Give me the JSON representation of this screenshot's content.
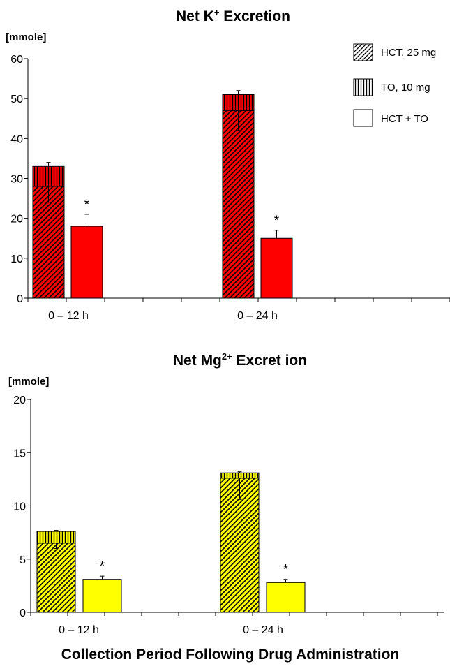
{
  "xlabel": "Collection Period Following Drug Administration",
  "legend": {
    "hct": "HCT, 25 mg",
    "to": "TO, 10 mg",
    "combo": "HCT + TO"
  },
  "charts": [
    {
      "title_main": "Net K",
      "title_sup": "+",
      "title_rest": " Excretion"
    },
    {
      "title_main": "Net Mg",
      "title_sup": "2+",
      "title_rest": " Excret ion"
    }
  ],
  "chart_data": [
    {
      "type": "bar",
      "title": "Net K+ Excretion",
      "ylabel": "[mmole]",
      "ylim": [
        0,
        60
      ],
      "yticks": [
        0,
        10,
        20,
        30,
        40,
        50,
        60
      ],
      "categories": [
        "0 – 12 h",
        "0 – 24 h"
      ],
      "color": "#ff0000",
      "series": [
        {
          "name": "HCT, 25 mg",
          "values": [
            28,
            47
          ],
          "error": [
            4,
            5
          ]
        },
        {
          "name": "TO, 10 mg",
          "values": [
            5,
            4
          ],
          "stacked_on": "HCT, 25 mg",
          "error": [
            1,
            1
          ]
        },
        {
          "name": "HCT + TO",
          "values": [
            18,
            15
          ],
          "error": [
            3,
            2
          ]
        }
      ],
      "annotations": [
        "*",
        "*"
      ]
    },
    {
      "type": "bar",
      "title": "Net Mg2+ Excretion",
      "ylabel": "[mmole]",
      "ylim": [
        0,
        20
      ],
      "yticks": [
        0,
        5,
        10,
        15,
        20
      ],
      "categories": [
        "0 – 12 h",
        "0 – 24 h"
      ],
      "color": "#ffff00",
      "series": [
        {
          "name": "HCT, 25 mg",
          "values": [
            6.5,
            12.6
          ],
          "error": [
            0.5,
            2
          ]
        },
        {
          "name": "TO, 10 mg",
          "values": [
            1.1,
            0.5
          ],
          "stacked_on": "HCT, 25 mg",
          "error": [
            0.1,
            0.1
          ]
        },
        {
          "name": "HCT + TO",
          "values": [
            3.1,
            2.8
          ],
          "error": [
            0.3,
            0.3
          ]
        }
      ],
      "annotations": [
        "*",
        "*"
      ]
    }
  ]
}
